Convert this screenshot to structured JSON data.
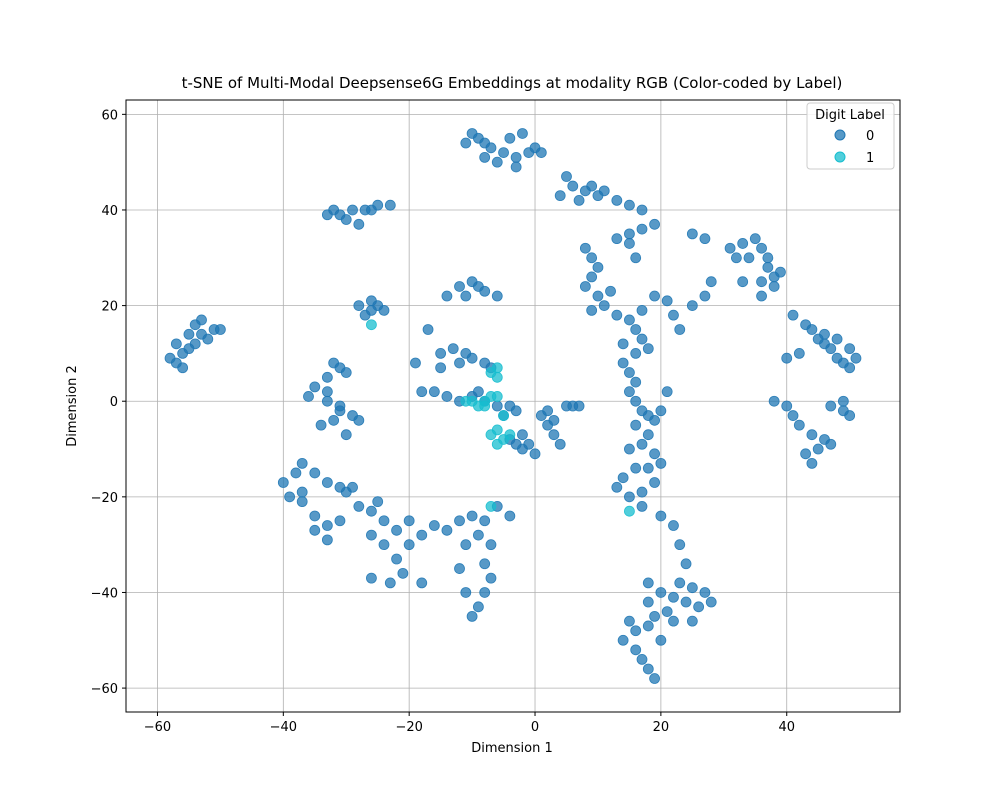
{
  "chart_data": {
    "type": "scatter",
    "title": "t-SNE of Multi-Modal Deepsense6G Embeddings at modality RGB (Color-coded by Label)",
    "xlabel": "Dimension 1",
    "ylabel": "Dimension 2",
    "xlim": [
      -65,
      58
    ],
    "ylim": [
      -65,
      63
    ],
    "xticks": [
      -60,
      -40,
      -20,
      0,
      20,
      40
    ],
    "yticks": [
      -60,
      -40,
      -20,
      0,
      20,
      40,
      60
    ],
    "xtick_labels": [
      "−60",
      "−40",
      "−20",
      "0",
      "20",
      "40"
    ],
    "ytick_labels": [
      "−60",
      "−40",
      "−20",
      "0",
      "20",
      "40",
      "60"
    ],
    "grid": true,
    "legend": {
      "title": "Digit Label",
      "placement": "top-right"
    },
    "series": [
      {
        "name": "0",
        "color": "#1f77b4",
        "points": [
          [
            -57,
            8
          ],
          [
            -56,
            10
          ],
          [
            -55,
            14
          ],
          [
            -54,
            16
          ],
          [
            -53,
            17
          ],
          [
            -51,
            15
          ],
          [
            -50,
            15
          ],
          [
            -52,
            13
          ],
          [
            -56,
            7
          ],
          [
            -58,
            9
          ],
          [
            -55,
            11
          ],
          [
            -54,
            12
          ],
          [
            -57,
            12
          ],
          [
            -53,
            14
          ],
          [
            -33,
            39
          ],
          [
            -31,
            39
          ],
          [
            -29,
            40
          ],
          [
            -27,
            40
          ],
          [
            -25,
            41
          ],
          [
            -23,
            41
          ],
          [
            -28,
            37
          ],
          [
            -30,
            38
          ],
          [
            -26,
            40
          ],
          [
            -32,
            40
          ],
          [
            -28,
            20
          ],
          [
            -26,
            21
          ],
          [
            -25,
            20
          ],
          [
            -24,
            19
          ],
          [
            -27,
            18
          ],
          [
            -26,
            19
          ],
          [
            -32,
            8
          ],
          [
            -31,
            7
          ],
          [
            -30,
            6
          ],
          [
            -33,
            5
          ],
          [
            -35,
            3
          ],
          [
            -36,
            1
          ],
          [
            -33,
            0
          ],
          [
            -31,
            -2
          ],
          [
            -29,
            -3
          ],
          [
            -28,
            -4
          ],
          [
            -32,
            -4
          ],
          [
            -34,
            -5
          ],
          [
            -30,
            -7
          ],
          [
            -31,
            -1
          ],
          [
            -33,
            2
          ],
          [
            -40,
            -17
          ],
          [
            -38,
            -15
          ],
          [
            -37,
            -13
          ],
          [
            -35,
            -15
          ],
          [
            -33,
            -17
          ],
          [
            -31,
            -18
          ],
          [
            -29,
            -18
          ],
          [
            -39,
            -20
          ],
          [
            -37,
            -21
          ],
          [
            -35,
            -24
          ],
          [
            -33,
            -26
          ],
          [
            -31,
            -25
          ],
          [
            -35,
            -27
          ],
          [
            -33,
            -29
          ],
          [
            -37,
            -19
          ],
          [
            -30,
            -19
          ],
          [
            -28,
            -22
          ],
          [
            -26,
            -23
          ],
          [
            -24,
            -25
          ],
          [
            -22,
            -27
          ],
          [
            -20,
            -30
          ],
          [
            -22,
            -33
          ],
          [
            -21,
            -36
          ],
          [
            -23,
            -38
          ],
          [
            -24,
            -30
          ],
          [
            -26,
            -28
          ],
          [
            -25,
            -21
          ],
          [
            -20,
            -25
          ],
          [
            -18,
            -28
          ],
          [
            -16,
            -26
          ],
          [
            -14,
            -27
          ],
          [
            -18,
            -38
          ],
          [
            -26,
            -37
          ],
          [
            -12,
            -25
          ],
          [
            -10,
            -24
          ],
          [
            -8,
            -25
          ],
          [
            -9,
            -28
          ],
          [
            -7,
            -30
          ],
          [
            -11,
            -30
          ],
          [
            -8,
            -34
          ],
          [
            -7,
            -37
          ],
          [
            -8,
            -40
          ],
          [
            -9,
            -43
          ],
          [
            -10,
            -45
          ],
          [
            -12,
            -35
          ],
          [
            -11,
            -40
          ],
          [
            -6,
            -22
          ],
          [
            -4,
            -24
          ],
          [
            -12,
            24
          ],
          [
            -10,
            25
          ],
          [
            -8,
            23
          ],
          [
            -6,
            22
          ],
          [
            -11,
            22
          ],
          [
            -9,
            24
          ],
          [
            -14,
            22
          ],
          [
            -15,
            10
          ],
          [
            -13,
            11
          ],
          [
            -11,
            10
          ],
          [
            -10,
            9
          ],
          [
            -8,
            8
          ],
          [
            -7,
            7
          ],
          [
            -12,
            8
          ],
          [
            -17,
            15
          ],
          [
            -19,
            8
          ],
          [
            -15,
            7
          ],
          [
            -16,
            2
          ],
          [
            -14,
            1
          ],
          [
            -12,
            0
          ],
          [
            -10,
            1
          ],
          [
            -8,
            0
          ],
          [
            -6,
            -1
          ],
          [
            -4,
            -1
          ],
          [
            -3,
            -2
          ],
          [
            -5,
            -3
          ],
          [
            -9,
            2
          ],
          [
            -18,
            2
          ],
          [
            -2,
            -7
          ],
          [
            -1,
            -9
          ],
          [
            0,
            -11
          ],
          [
            -2,
            -10
          ],
          [
            -3,
            -9
          ],
          [
            -4,
            -8
          ],
          [
            1,
            -3
          ],
          [
            2,
            -2
          ],
          [
            3,
            -4
          ],
          [
            3,
            -7
          ],
          [
            4,
            -9
          ],
          [
            2,
            -5
          ],
          [
            5,
            -1
          ],
          [
            6,
            -1
          ],
          [
            7,
            -1
          ],
          [
            -10,
            56
          ],
          [
            -9,
            55
          ],
          [
            -8,
            54
          ],
          [
            -7,
            53
          ],
          [
            -5,
            52
          ],
          [
            -3,
            51
          ],
          [
            -1,
            52
          ],
          [
            0,
            53
          ],
          [
            1,
            52
          ],
          [
            -6,
            50
          ],
          [
            -3,
            49
          ],
          [
            -8,
            51
          ],
          [
            -11,
            54
          ],
          [
            -4,
            55
          ],
          [
            -2,
            56
          ],
          [
            5,
            47
          ],
          [
            6,
            45
          ],
          [
            8,
            44
          ],
          [
            10,
            43
          ],
          [
            11,
            44
          ],
          [
            9,
            45
          ],
          [
            4,
            43
          ],
          [
            7,
            42
          ],
          [
            13,
            42
          ],
          [
            15,
            41
          ],
          [
            17,
            40
          ],
          [
            19,
            37
          ],
          [
            17,
            36
          ],
          [
            15,
            35
          ],
          [
            13,
            34
          ],
          [
            15,
            33
          ],
          [
            16,
            30
          ],
          [
            8,
            32
          ],
          [
            9,
            30
          ],
          [
            10,
            28
          ],
          [
            9,
            26
          ],
          [
            8,
            24
          ],
          [
            10,
            22
          ],
          [
            11,
            20
          ],
          [
            9,
            19
          ],
          [
            12,
            23
          ],
          [
            13,
            18
          ],
          [
            15,
            17
          ],
          [
            16,
            15
          ],
          [
            17,
            13
          ],
          [
            18,
            11
          ],
          [
            16,
            10
          ],
          [
            14,
            12
          ],
          [
            17,
            19
          ],
          [
            19,
            22
          ],
          [
            21,
            21
          ],
          [
            22,
            18
          ],
          [
            23,
            15
          ],
          [
            25,
            20
          ],
          [
            27,
            22
          ],
          [
            14,
            8
          ],
          [
            15,
            6
          ],
          [
            16,
            4
          ],
          [
            15,
            2
          ],
          [
            16,
            0
          ],
          [
            17,
            -2
          ],
          [
            18,
            -3
          ],
          [
            16,
            -5
          ],
          [
            19,
            -4
          ],
          [
            20,
            -2
          ],
          [
            21,
            2
          ],
          [
            15,
            -10
          ],
          [
            17,
            -9
          ],
          [
            19,
            -11
          ],
          [
            18,
            -14
          ],
          [
            16,
            -14
          ],
          [
            14,
            -16
          ],
          [
            13,
            -18
          ],
          [
            15,
            -20
          ],
          [
            17,
            -19
          ],
          [
            19,
            -17
          ],
          [
            20,
            -13
          ],
          [
            18,
            -7
          ],
          [
            17,
            -22
          ],
          [
            20,
            -24
          ],
          [
            22,
            -26
          ],
          [
            23,
            -30
          ],
          [
            24,
            -34
          ],
          [
            14,
            -50
          ],
          [
            16,
            -52
          ],
          [
            17,
            -54
          ],
          [
            18,
            -56
          ],
          [
            19,
            -58
          ],
          [
            16,
            -48
          ],
          [
            15,
            -46
          ],
          [
            18,
            -47
          ],
          [
            20,
            -50
          ],
          [
            19,
            -45
          ],
          [
            18,
            -42
          ],
          [
            20,
            -40
          ],
          [
            22,
            -41
          ],
          [
            24,
            -42
          ],
          [
            26,
            -43
          ],
          [
            23,
            -38
          ],
          [
            25,
            -39
          ],
          [
            27,
            -40
          ],
          [
            28,
            -42
          ],
          [
            21,
            -44
          ],
          [
            22,
            -46
          ],
          [
            25,
            -46
          ],
          [
            18,
            -38
          ],
          [
            25,
            35
          ],
          [
            27,
            34
          ],
          [
            28,
            25
          ],
          [
            31,
            32
          ],
          [
            33,
            33
          ],
          [
            35,
            34
          ],
          [
            36,
            32
          ],
          [
            34,
            30
          ],
          [
            32,
            30
          ],
          [
            37,
            28
          ],
          [
            38,
            26
          ],
          [
            36,
            25
          ],
          [
            38,
            24
          ],
          [
            39,
            27
          ],
          [
            37,
            30
          ],
          [
            36,
            22
          ],
          [
            33,
            25
          ],
          [
            41,
            18
          ],
          [
            43,
            16
          ],
          [
            44,
            15
          ],
          [
            45,
            13
          ],
          [
            46,
            12
          ],
          [
            47,
            11
          ],
          [
            48,
            9
          ],
          [
            49,
            8
          ],
          [
            50,
            7
          ],
          [
            51,
            9
          ],
          [
            50,
            11
          ],
          [
            48,
            13
          ],
          [
            46,
            14
          ],
          [
            42,
            10
          ],
          [
            40,
            9
          ],
          [
            38,
            0
          ],
          [
            40,
            -1
          ],
          [
            41,
            -3
          ],
          [
            42,
            -5
          ],
          [
            44,
            -7
          ],
          [
            46,
            -8
          ],
          [
            47,
            -9
          ],
          [
            45,
            -10
          ],
          [
            43,
            -11
          ],
          [
            44,
            -13
          ],
          [
            47,
            -1
          ],
          [
            49,
            -2
          ],
          [
            50,
            -3
          ],
          [
            49,
            0
          ]
        ]
      },
      {
        "name": "1",
        "color": "#17becf",
        "points": [
          [
            -6,
            7
          ],
          [
            -7,
            6
          ],
          [
            -6,
            5
          ],
          [
            -8,
            0
          ],
          [
            -7,
            1
          ],
          [
            -9,
            -1
          ],
          [
            -10,
            0
          ],
          [
            -11,
            0
          ],
          [
            -5,
            -3
          ],
          [
            -6,
            -6
          ],
          [
            -7,
            -7
          ],
          [
            -5,
            -8
          ],
          [
            -6,
            -9
          ],
          [
            -4,
            -7
          ],
          [
            -7,
            -22
          ],
          [
            -26,
            16
          ],
          [
            15,
            -23
          ],
          [
            -8,
            -1
          ],
          [
            -6,
            1
          ]
        ]
      }
    ]
  }
}
